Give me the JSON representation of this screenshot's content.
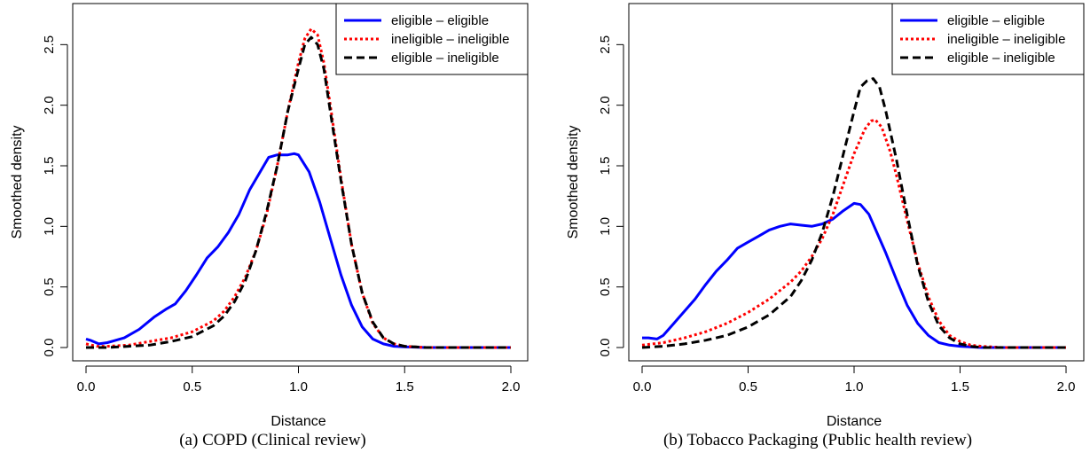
{
  "chart_data": [
    {
      "type": "line",
      "caption": "(a) COPD (Clinical review)",
      "xlabel": "Distance",
      "ylabel": "Smoothed density",
      "xlim": [
        0,
        2
      ],
      "ylim": [
        0,
        2.7
      ],
      "xticks": [
        "0.0",
        "0.5",
        "1.0",
        "1.5",
        "2.0"
      ],
      "yticks": [
        "0.0",
        "0.5",
        "1.0",
        "1.5",
        "2.0",
        "2.5"
      ],
      "legend_position": "top-right",
      "series": [
        {
          "name": "eligible – eligible",
          "color": "#0000ff",
          "style": "solid",
          "points": [
            [
              0.0,
              0.07
            ],
            [
              0.02,
              0.06
            ],
            [
              0.06,
              0.03
            ],
            [
              0.1,
              0.04
            ],
            [
              0.18,
              0.08
            ],
            [
              0.25,
              0.15
            ],
            [
              0.32,
              0.25
            ],
            [
              0.38,
              0.32
            ],
            [
              0.42,
              0.36
            ],
            [
              0.47,
              0.47
            ],
            [
              0.52,
              0.6
            ],
            [
              0.57,
              0.74
            ],
            [
              0.62,
              0.83
            ],
            [
              0.67,
              0.95
            ],
            [
              0.72,
              1.1
            ],
            [
              0.77,
              1.3
            ],
            [
              0.82,
              1.45
            ],
            [
              0.86,
              1.57
            ],
            [
              0.9,
              1.59
            ],
            [
              0.95,
              1.59
            ],
            [
              0.98,
              1.6
            ],
            [
              1.0,
              1.59
            ],
            [
              1.05,
              1.45
            ],
            [
              1.1,
              1.2
            ],
            [
              1.15,
              0.9
            ],
            [
              1.2,
              0.6
            ],
            [
              1.25,
              0.35
            ],
            [
              1.3,
              0.17
            ],
            [
              1.35,
              0.07
            ],
            [
              1.4,
              0.03
            ],
            [
              1.45,
              0.01
            ],
            [
              1.5,
              0.005
            ],
            [
              1.6,
              0
            ],
            [
              1.8,
              0
            ],
            [
              2.0,
              0
            ]
          ]
        },
        {
          "name": "ineligible – ineligible",
          "color": "#ff0000",
          "style": "dotted",
          "points": [
            [
              0.0,
              0.03
            ],
            [
              0.05,
              0.01
            ],
            [
              0.1,
              0.01
            ],
            [
              0.2,
              0.02
            ],
            [
              0.3,
              0.05
            ],
            [
              0.4,
              0.08
            ],
            [
              0.5,
              0.13
            ],
            [
              0.6,
              0.22
            ],
            [
              0.65,
              0.3
            ],
            [
              0.7,
              0.42
            ],
            [
              0.75,
              0.58
            ],
            [
              0.8,
              0.8
            ],
            [
              0.85,
              1.1
            ],
            [
              0.9,
              1.5
            ],
            [
              0.95,
              1.95
            ],
            [
              1.0,
              2.35
            ],
            [
              1.03,
              2.55
            ],
            [
              1.06,
              2.63
            ],
            [
              1.09,
              2.58
            ],
            [
              1.12,
              2.35
            ],
            [
              1.15,
              2.0
            ],
            [
              1.2,
              1.4
            ],
            [
              1.25,
              0.85
            ],
            [
              1.3,
              0.45
            ],
            [
              1.35,
              0.2
            ],
            [
              1.4,
              0.08
            ],
            [
              1.45,
              0.03
            ],
            [
              1.5,
              0.01
            ],
            [
              1.6,
              0
            ],
            [
              1.8,
              0
            ],
            [
              2.0,
              0
            ]
          ]
        },
        {
          "name": "eligible – ineligible",
          "color": "#000000",
          "style": "dashed",
          "points": [
            [
              0.0,
              0.0
            ],
            [
              0.1,
              0.0
            ],
            [
              0.2,
              0.01
            ],
            [
              0.3,
              0.02
            ],
            [
              0.4,
              0.05
            ],
            [
              0.5,
              0.09
            ],
            [
              0.6,
              0.18
            ],
            [
              0.65,
              0.26
            ],
            [
              0.7,
              0.38
            ],
            [
              0.75,
              0.55
            ],
            [
              0.8,
              0.8
            ],
            [
              0.85,
              1.12
            ],
            [
              0.9,
              1.5
            ],
            [
              0.95,
              1.95
            ],
            [
              1.0,
              2.3
            ],
            [
              1.03,
              2.5
            ],
            [
              1.06,
              2.56
            ],
            [
              1.09,
              2.5
            ],
            [
              1.12,
              2.3
            ],
            [
              1.15,
              1.95
            ],
            [
              1.2,
              1.38
            ],
            [
              1.25,
              0.85
            ],
            [
              1.3,
              0.45
            ],
            [
              1.35,
              0.21
            ],
            [
              1.4,
              0.08
            ],
            [
              1.45,
              0.03
            ],
            [
              1.5,
              0.01
            ],
            [
              1.6,
              0
            ],
            [
              1.8,
              0
            ],
            [
              2.0,
              0
            ]
          ]
        }
      ]
    },
    {
      "type": "line",
      "caption": "(b) Tobacco Packaging (Public health review)",
      "xlabel": "Distance",
      "ylabel": "Smoothed density",
      "xlim": [
        0,
        2
      ],
      "ylim": [
        0,
        2.7
      ],
      "xticks": [
        "0.0",
        "0.5",
        "1.0",
        "1.5",
        "2.0"
      ],
      "yticks": [
        "0.0",
        "0.5",
        "1.0",
        "1.5",
        "2.0",
        "2.5"
      ],
      "legend_position": "top-right",
      "series": [
        {
          "name": "eligible – eligible",
          "color": "#0000ff",
          "style": "solid",
          "points": [
            [
              0.0,
              0.08
            ],
            [
              0.03,
              0.08
            ],
            [
              0.07,
              0.07
            ],
            [
              0.1,
              0.1
            ],
            [
              0.15,
              0.2
            ],
            [
              0.2,
              0.3
            ],
            [
              0.25,
              0.4
            ],
            [
              0.3,
              0.52
            ],
            [
              0.35,
              0.63
            ],
            [
              0.4,
              0.72
            ],
            [
              0.45,
              0.82
            ],
            [
              0.5,
              0.87
            ],
            [
              0.55,
              0.92
            ],
            [
              0.6,
              0.97
            ],
            [
              0.65,
              1.0
            ],
            [
              0.7,
              1.02
            ],
            [
              0.75,
              1.01
            ],
            [
              0.8,
              1.0
            ],
            [
              0.85,
              1.02
            ],
            [
              0.9,
              1.06
            ],
            [
              0.95,
              1.13
            ],
            [
              1.0,
              1.19
            ],
            [
              1.03,
              1.18
            ],
            [
              1.07,
              1.1
            ],
            [
              1.1,
              0.98
            ],
            [
              1.15,
              0.78
            ],
            [
              1.2,
              0.56
            ],
            [
              1.25,
              0.35
            ],
            [
              1.3,
              0.2
            ],
            [
              1.35,
              0.1
            ],
            [
              1.4,
              0.04
            ],
            [
              1.45,
              0.02
            ],
            [
              1.5,
              0.01
            ],
            [
              1.6,
              0
            ],
            [
              1.8,
              0
            ],
            [
              2.0,
              0
            ]
          ]
        },
        {
          "name": "ineligible – ineligible",
          "color": "#ff0000",
          "style": "dotted",
          "points": [
            [
              0.0,
              0.02
            ],
            [
              0.1,
              0.04
            ],
            [
              0.2,
              0.08
            ],
            [
              0.3,
              0.13
            ],
            [
              0.4,
              0.2
            ],
            [
              0.5,
              0.29
            ],
            [
              0.6,
              0.4
            ],
            [
              0.7,
              0.54
            ],
            [
              0.75,
              0.63
            ],
            [
              0.8,
              0.75
            ],
            [
              0.85,
              0.9
            ],
            [
              0.9,
              1.1
            ],
            [
              0.95,
              1.35
            ],
            [
              1.0,
              1.6
            ],
            [
              1.05,
              1.8
            ],
            [
              1.08,
              1.87
            ],
            [
              1.1,
              1.88
            ],
            [
              1.13,
              1.82
            ],
            [
              1.17,
              1.62
            ],
            [
              1.2,
              1.42
            ],
            [
              1.25,
              1.05
            ],
            [
              1.3,
              0.7
            ],
            [
              1.35,
              0.42
            ],
            [
              1.4,
              0.22
            ],
            [
              1.45,
              0.1
            ],
            [
              1.5,
              0.05
            ],
            [
              1.55,
              0.02
            ],
            [
              1.6,
              0.01
            ],
            [
              1.7,
              0
            ],
            [
              2.0,
              0
            ]
          ]
        },
        {
          "name": "eligible – ineligible",
          "color": "#000000",
          "style": "dashed",
          "points": [
            [
              0.0,
              0.0
            ],
            [
              0.1,
              0.01
            ],
            [
              0.2,
              0.03
            ],
            [
              0.3,
              0.06
            ],
            [
              0.4,
              0.1
            ],
            [
              0.5,
              0.17
            ],
            [
              0.6,
              0.27
            ],
            [
              0.7,
              0.42
            ],
            [
              0.75,
              0.55
            ],
            [
              0.8,
              0.72
            ],
            [
              0.85,
              0.95
            ],
            [
              0.9,
              1.25
            ],
            [
              0.95,
              1.6
            ],
            [
              1.0,
              1.95
            ],
            [
              1.03,
              2.15
            ],
            [
              1.06,
              2.2
            ],
            [
              1.09,
              2.22
            ],
            [
              1.12,
              2.15
            ],
            [
              1.15,
              1.95
            ],
            [
              1.2,
              1.55
            ],
            [
              1.25,
              1.1
            ],
            [
              1.3,
              0.68
            ],
            [
              1.35,
              0.38
            ],
            [
              1.4,
              0.18
            ],
            [
              1.45,
              0.08
            ],
            [
              1.5,
              0.03
            ],
            [
              1.55,
              0.01
            ],
            [
              1.6,
              0
            ],
            [
              2.0,
              0
            ]
          ]
        }
      ]
    }
  ]
}
